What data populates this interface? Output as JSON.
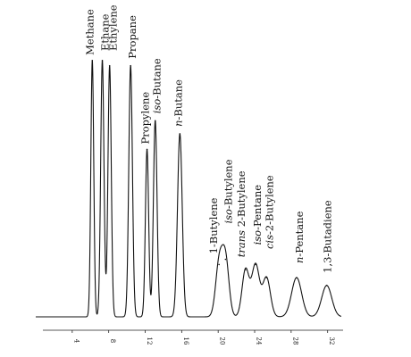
{
  "chart_data": {
    "type": "line",
    "title": "",
    "xlabel": "",
    "ylabel": "",
    "x_ticks": [
      "4",
      "8",
      "12",
      "16",
      "20",
      "24",
      "28",
      "32"
    ],
    "xlim": [
      0,
      33.5
    ],
    "ylim": [
      0,
      100
    ],
    "peaks": [
      {
        "label": "Methane",
        "italic_prefix": "",
        "label_rest": "Methane",
        "x": 6.2,
        "height": 98,
        "width": 0.16
      },
      {
        "label": "Ethane",
        "italic_prefix": "",
        "label_rest": "Ethane",
        "x": 7.3,
        "height": 98,
        "width": 0.18
      },
      {
        "label": "Ethylene",
        "italic_prefix": "",
        "label_rest": "Ethylene",
        "x": 8.1,
        "height": 96,
        "width": 0.18
      },
      {
        "label": "Propane",
        "italic_prefix": "",
        "label_rest": "Propane",
        "x": 10.4,
        "height": 96,
        "width": 0.2
      },
      {
        "label": "Propylene",
        "italic_prefix": "",
        "label_rest": "Propylene",
        "x": 12.2,
        "height": 64,
        "width": 0.18
      },
      {
        "label": "iso-Butane",
        "italic_prefix": "iso-",
        "label_rest": "Butane",
        "x": 13.1,
        "height": 75,
        "width": 0.2
      },
      {
        "label": "n-Butane",
        "italic_prefix": "n-",
        "label_rest": "Butane",
        "x": 15.8,
        "height": 70,
        "width": 0.26
      },
      {
        "label": "1-Butylene",
        "italic_prefix": "",
        "label_rest": "1-Butylene",
        "x": 20.1,
        "height": 20,
        "width": 0.38
      },
      {
        "label": "iso-Butylene",
        "italic_prefix": "iso-",
        "label_rest": "Butylene",
        "x": 20.8,
        "height": 22,
        "width": 0.38
      },
      {
        "label": "trans 2-Butylene",
        "italic_prefix": "trans",
        "label_rest": " 2-Butylene",
        "x": 23.0,
        "height": 18,
        "width": 0.38
      },
      {
        "label": "iso-Pentane",
        "italic_prefix": "iso-",
        "label_rest": "Pentane",
        "x": 24.1,
        "height": 20,
        "width": 0.42
      },
      {
        "label": "cis-2-Butylene",
        "italic_prefix": "cis-",
        "label_rest": "2-Butylene",
        "x": 25.3,
        "height": 15,
        "width": 0.42
      },
      {
        "label": "n-Pentane",
        "italic_prefix": "n-",
        "label_rest": "Pentane",
        "x": 28.6,
        "height": 15,
        "width": 0.55
      },
      {
        "label": "1,3-Butadiene",
        "italic_prefix": "",
        "label_rest": "1,3-Butadiene",
        "x": 31.9,
        "height": 12,
        "width": 0.55
      }
    ]
  }
}
